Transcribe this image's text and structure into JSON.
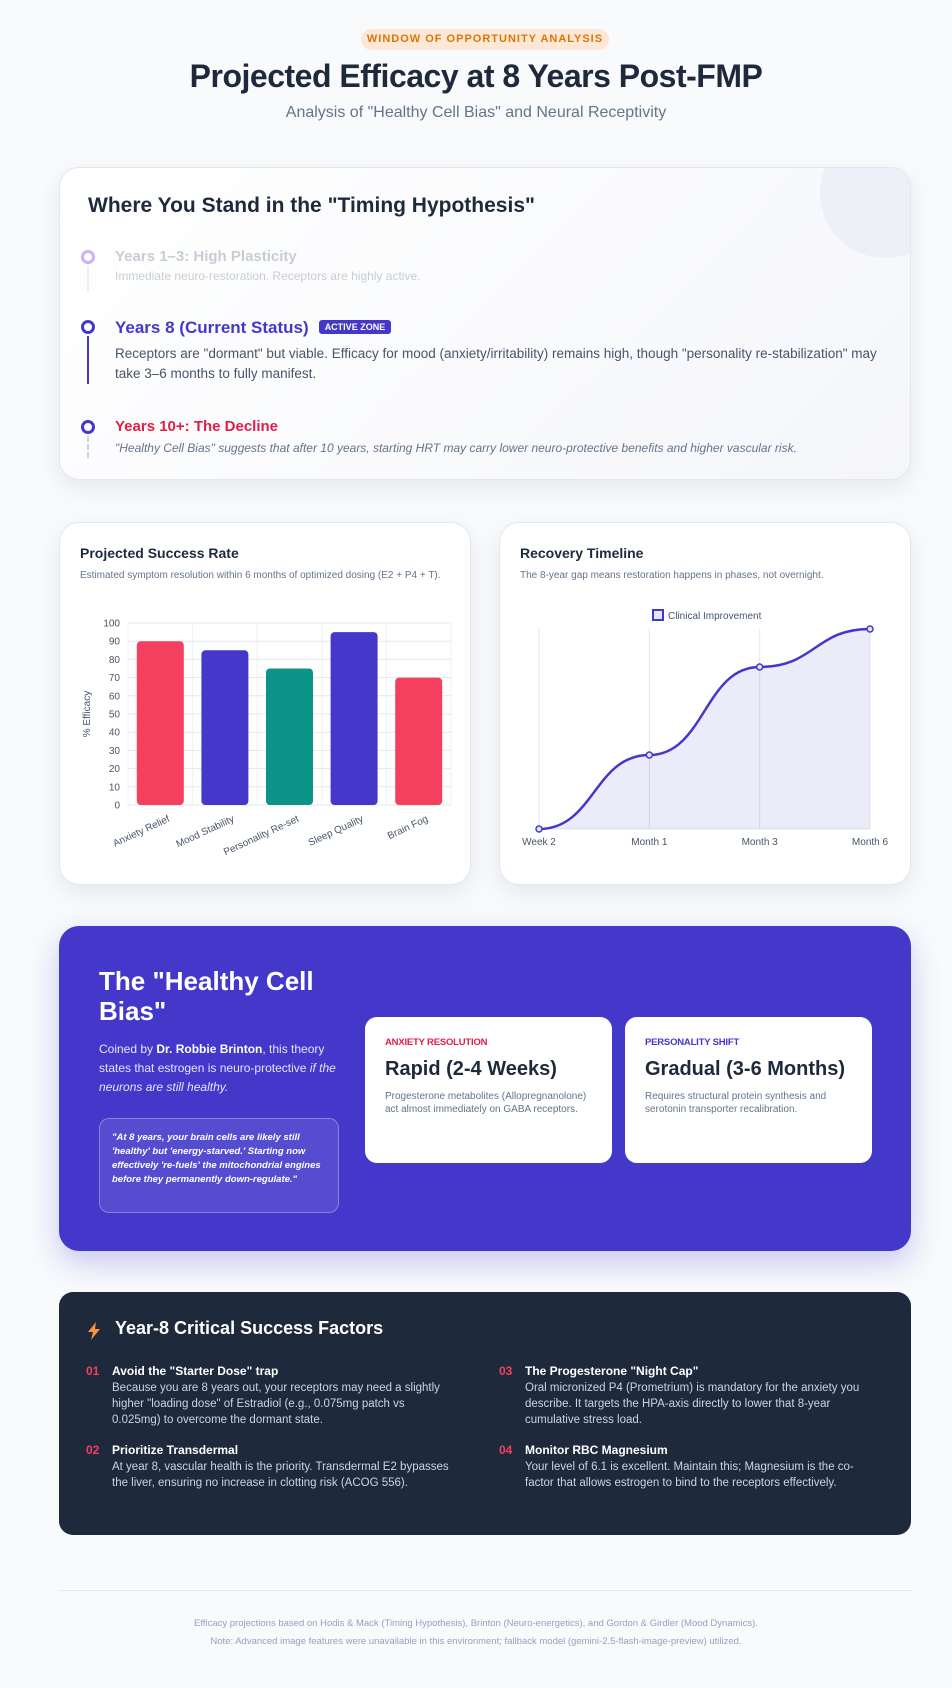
{
  "header": {
    "badge": "WINDOW OF OPPORTUNITY ANALYSIS",
    "title": "Projected Efficacy at 8 Years Post-FMP",
    "subtitle": "Analysis of \"Healthy Cell Bias\" and Neural Receptivity"
  },
  "timeline": {
    "title": "Where You Stand in the \"Timing Hypothesis\"",
    "items": [
      {
        "title": "Years 1–3: High Plasticity",
        "text": "Immediate neuro-restoration. Receptors are highly active."
      },
      {
        "title": "Years 8 (Current Status)",
        "tag": "ACTIVE ZONE",
        "text": "Receptors are \"dormant\" but viable. Efficacy for mood (anxiety/irritability) remains high, though \"personality re-stabilization\" may take 3–6 months to fully manifest."
      },
      {
        "title": "Years 10+: The Decline",
        "text": "\"Healthy Cell Bias\" suggests that after 10 years, starting HRT may carry lower neuro-protective benefits and higher vascular risk."
      }
    ]
  },
  "chart_data": [
    {
      "type": "bar",
      "title": "Projected Success Rate",
      "subtitle": "Estimated symptom resolution within 6 months of optimized dosing (E2 + P4 + T).",
      "y_label": "% Efficacy",
      "categories": [
        "Anxiety Relief",
        "Mood Stability",
        "Personality Re-set",
        "Sleep Quality",
        "Brain Fog"
      ],
      "values": [
        90,
        85,
        75,
        95,
        70
      ],
      "colors": [
        "#f43f5e",
        "#4338ca",
        "#0d9488",
        "#4338ca",
        "#f43f5e"
      ],
      "ylim": [
        0,
        100
      ],
      "yticks": [
        0,
        10,
        20,
        30,
        40,
        50,
        60,
        70,
        80,
        90,
        100
      ],
      "grid": true
    },
    {
      "type": "line",
      "title": "Recovery Timeline",
      "subtitle": "The 8-year gap means restoration happens in phases, not overnight.",
      "categories": [
        "Week 2",
        "Month 1",
        "Month 3",
        "Month 6"
      ],
      "series": [
        {
          "name": "Clinical Improvement",
          "color": "#4338ca",
          "values": [
            0,
            37,
            81,
            100
          ]
        }
      ],
      "ylim": [
        0,
        100
      ],
      "grid": true
    }
  ],
  "bias": {
    "title": "The \"Healthy Cell Bias\"",
    "intro_start": "Coined by ",
    "intro_name": "Dr. Robbie Brinton",
    "intro_mid": ", this theory states that estrogen is neuro-protective ",
    "intro_italic": "if the neurons are still healthy.",
    "quote": "\"At 8 years, your brain cells are likely still 'healthy' but 'energy-starved.' Starting now effectively 're-fuels' the mitochondrial engines before they permanently down-regulate.\"",
    "cards": [
      {
        "label": "ANXIETY RESOLUTION",
        "title": "Rapid (2-4 Weeks)",
        "text": "Progesterone metabolites (Allopregnanolone) act almost immediately on GABA receptors."
      },
      {
        "label": "PERSONALITY SHIFT",
        "title": "Gradual (3-6 Months)",
        "text": "Requires structural protein synthesis and serotonin transporter recalibration."
      }
    ]
  },
  "factors": {
    "title": "Year-8 Critical Success Factors",
    "items": [
      {
        "num": "01",
        "title": "Avoid the \"Starter Dose\" trap",
        "text": "Because you are 8 years out, your receptors may need a slightly higher \"loading dose\" of Estradiol (e.g., 0.075mg patch vs 0.025mg) to overcome the dormant state."
      },
      {
        "num": "02",
        "title": "Prioritize Transdermal",
        "text": "At year 8, vascular health is the priority. Transdermal E2 bypasses the liver, ensuring no increase in clotting risk (ACOG 556)."
      },
      {
        "num": "03",
        "title": "The Progesterone \"Night Cap\"",
        "text": "Oral micronized P4 (Prometrium) is mandatory for the anxiety you describe. It targets the HPA-axis directly to lower that 8-year cumulative stress load."
      },
      {
        "num": "04",
        "title": "Monitor RBC Magnesium",
        "text": "Your level of 6.1 is excellent. Maintain this; Magnesium is the co-factor that allows estrogen to bind to the receptors effectively."
      }
    ]
  },
  "footer": {
    "line1": "Efficacy projections based on Hodis & Mack (Timing Hypothesis), Brinton (Neuro-energetics), and Gordon & Girdler (Mood Dynamics).",
    "line2": "Note: Advanced image features were unavailable in this environment; fallback model (gemini-2.5-flash-image-preview) utilized."
  }
}
